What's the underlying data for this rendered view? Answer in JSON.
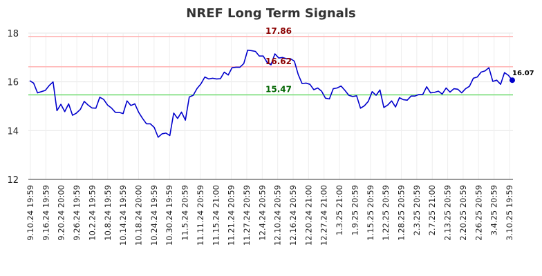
{
  "chart_data": {
    "type": "line",
    "title": "NREF Long Term Signals",
    "xlabel": "",
    "ylabel": "",
    "ylim": [
      12,
      18
    ],
    "yticks": [
      12,
      14,
      16,
      18
    ],
    "x_tick_labels": [
      "9.10.24 19:59",
      "9.16.24 19:59",
      "9.20.24 20:00",
      "9.26.24 19:59",
      "10.2.24 19:59",
      "10.8.24 19:59",
      "10.14.24 19:59",
      "10.18.24 20:00",
      "10.24.24 19:59",
      "10.30.24 19:59",
      "11.5.24 20:59",
      "11.11.24 20:59",
      "11.15.24 21:00",
      "11.21.24 20:59",
      "11.27.24 20:59",
      "12.4.24 20:59",
      "12.10.24 20:59",
      "12.16.24 20:59",
      "12.20.24 21:00",
      "12.27.24 21:00",
      "1.3.25 21:00",
      "1.9.25 20:59",
      "1.15.25 20:59",
      "1.22.25 20:59",
      "1.28.25 20:59",
      "2.3.25 20:59",
      "2.7.25 21:00",
      "2.13.25 20:59",
      "2.20.25 20:59",
      "2.26.25 20:59",
      "3.4.25 20:59",
      "3.10.25 19:59"
    ],
    "series": [
      {
        "color": "#0000cc",
        "values": [
          16.05,
          15.95,
          15.55,
          15.6,
          15.65,
          15.85,
          16.0,
          14.82,
          15.08,
          14.78,
          15.1,
          14.63,
          14.72,
          14.87,
          15.2,
          15.05,
          14.93,
          14.92,
          15.37,
          15.28,
          15.05,
          14.93,
          14.75,
          14.75,
          14.7,
          15.22,
          15.03,
          15.1,
          14.75,
          14.5,
          14.28,
          14.28,
          14.13,
          13.73,
          13.87,
          13.9,
          13.8,
          14.72,
          14.5,
          14.76,
          14.43,
          15.38,
          15.45,
          15.73,
          15.92,
          16.2,
          16.12,
          16.15,
          16.12,
          16.13,
          16.4,
          16.28,
          16.58,
          16.6,
          16.6,
          16.75,
          17.3,
          17.28,
          17.25,
          17.06,
          17.06,
          16.8,
          16.7,
          17.15,
          16.98,
          17.0,
          16.95,
          16.95,
          16.85,
          16.3,
          15.93,
          15.95,
          15.9,
          15.68,
          15.75,
          15.62,
          15.33,
          15.3,
          15.72,
          15.75,
          15.83,
          15.65,
          15.45,
          15.4,
          15.43,
          14.92,
          15.02,
          15.2,
          15.6,
          15.45,
          15.67,
          14.95,
          15.05,
          15.22,
          14.97,
          15.35,
          15.27,
          15.25,
          15.42,
          15.42,
          15.48,
          15.48,
          15.8,
          15.55,
          15.57,
          15.62,
          15.5,
          15.75,
          15.58,
          15.72,
          15.7,
          15.55,
          15.72,
          15.82,
          16.15,
          16.2,
          16.4,
          16.45,
          16.58,
          16.02,
          16.07,
          15.9,
          16.38,
          16.27,
          16.07
        ]
      }
    ],
    "reference_lines": [
      {
        "value": 17.86,
        "label": "17.86",
        "color": "#ffb3b3",
        "label_color": "#8b0000"
      },
      {
        "value": 16.62,
        "label": "16.62",
        "color": "#ffb3b3",
        "label_color": "#8b0000"
      },
      {
        "value": 15.47,
        "label": "15.47",
        "color": "#77dd77",
        "label_color": "#006400"
      }
    ],
    "last_value": {
      "value": 16.07,
      "label": "16.07"
    },
    "grid": true,
    "legend": "none"
  }
}
